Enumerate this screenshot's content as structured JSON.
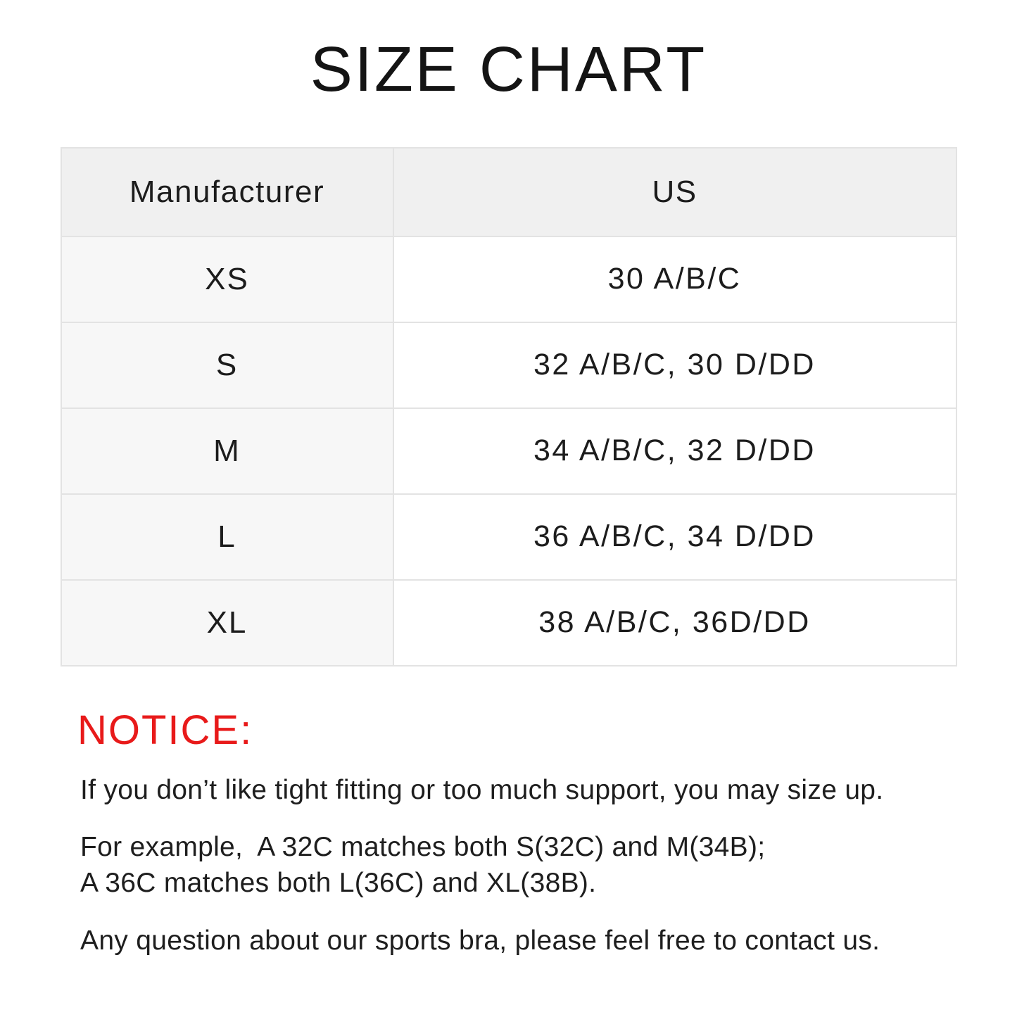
{
  "page": {
    "title": "SIZE CHART"
  },
  "size_table": {
    "headers": {
      "manufacturer": "Manufacturer",
      "us": "US"
    },
    "rows": [
      {
        "manufacturer": "XS",
        "us": "30 A/B/C"
      },
      {
        "manufacturer": "S",
        "us": "32 A/B/C, 30 D/DD"
      },
      {
        "manufacturer": "M",
        "us": "34 A/B/C, 32 D/DD"
      },
      {
        "manufacturer": "L",
        "us": "36 A/B/C, 34 D/DD"
      },
      {
        "manufacturer": "XL",
        "us": "38 A/B/C, 36D/DD"
      }
    ]
  },
  "notice": {
    "heading": "NOTICE:",
    "paragraphs": [
      "If you don’t like tight fitting or too much support, you may size up.",
      "For example,  A 32C matches both S(32C) and M(34B);\nA 36C matches both L(36C) and XL(38B).",
      "Any question about our sports bra, please feel free to contact us."
    ]
  },
  "colors": {
    "notice_red": "#e81a1a",
    "table_header_bg": "#f0f0f0",
    "table_left_column_bg": "#f7f7f7",
    "table_border": "#e3e3e3",
    "text": "#1c1c1c",
    "background": "#ffffff"
  }
}
